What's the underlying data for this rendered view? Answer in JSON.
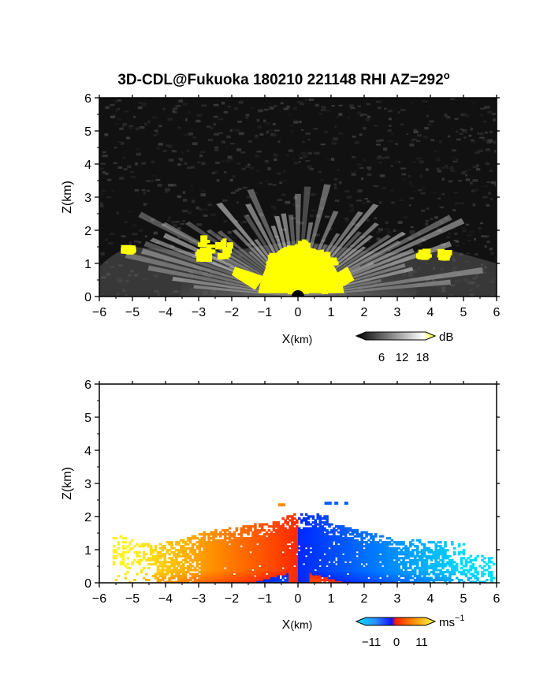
{
  "chart_data": [
    {
      "type": "heatmap",
      "title": "3D-CDL@Fukuoka 180210 221148 RHI AZ=292",
      "title_superscript": "o",
      "xlabel_main": "X",
      "xlabel_unit": "(km)",
      "ylabel": "Z(km)",
      "xlim": [
        -6,
        6
      ],
      "ylim": [
        0,
        6
      ],
      "x_ticks": [
        "-6",
        "-5",
        "-4",
        "-3",
        "-2",
        "-1",
        "0",
        "1",
        "2",
        "3",
        "4",
        "5",
        "6"
      ],
      "y_ticks": [
        "0",
        "1",
        "2",
        "3",
        "4",
        "5",
        "6"
      ],
      "background": "#111111",
      "colorbar": {
        "unit": "dB",
        "ticks": [
          "6",
          "12",
          "18"
        ],
        "range": [
          0,
          20
        ]
      },
      "saturation_color": "#ffff00",
      "echo_regions": [
        {
          "x": [
            -0.9,
            1.1
          ],
          "z": [
            0.1,
            1.6
          ],
          "level": "saturated"
        },
        {
          "x": [
            -3.0,
            -1.9
          ],
          "z": [
            1.15,
            1.75
          ],
          "level": "saturated"
        },
        {
          "x": [
            -5.2,
            -5.0
          ],
          "z": [
            1.38,
            1.55
          ],
          "level": "saturated"
        },
        {
          "x": [
            3.7,
            3.9
          ],
          "z": [
            1.22,
            1.38
          ],
          "level": "saturated"
        },
        {
          "x": [
            4.3,
            4.5
          ],
          "z": [
            1.2,
            1.4
          ],
          "level": "saturated"
        }
      ]
    },
    {
      "type": "heatmap",
      "title": "",
      "xlabel_main": "X",
      "xlabel_unit": "(km)",
      "ylabel": "Z(km)",
      "xlim": [
        -6,
        6
      ],
      "ylim": [
        0,
        6
      ],
      "x_ticks": [
        "-6",
        "-5",
        "-4",
        "-3",
        "-2",
        "-1",
        "0",
        "1",
        "2",
        "3",
        "4",
        "5",
        "6"
      ],
      "y_ticks": [
        "0",
        "1",
        "2",
        "3",
        "4",
        "5",
        "6"
      ],
      "colorbar": {
        "unit": "ms",
        "unit_exponent": "−1",
        "ticks": [
          "−11",
          "0",
          "11"
        ],
        "range": [
          -11,
          11
        ]
      },
      "velocity_field": {
        "x_extent": [
          -5.6,
          5.9
        ],
        "max_height_km": 2.4,
        "sign_change_at_x": 0,
        "negative_x_color": "warm (yellow-orange-red, toward red near x=0)",
        "positive_x_color": "cool (blue to cyan, toward blue near x=0)"
      }
    }
  ]
}
